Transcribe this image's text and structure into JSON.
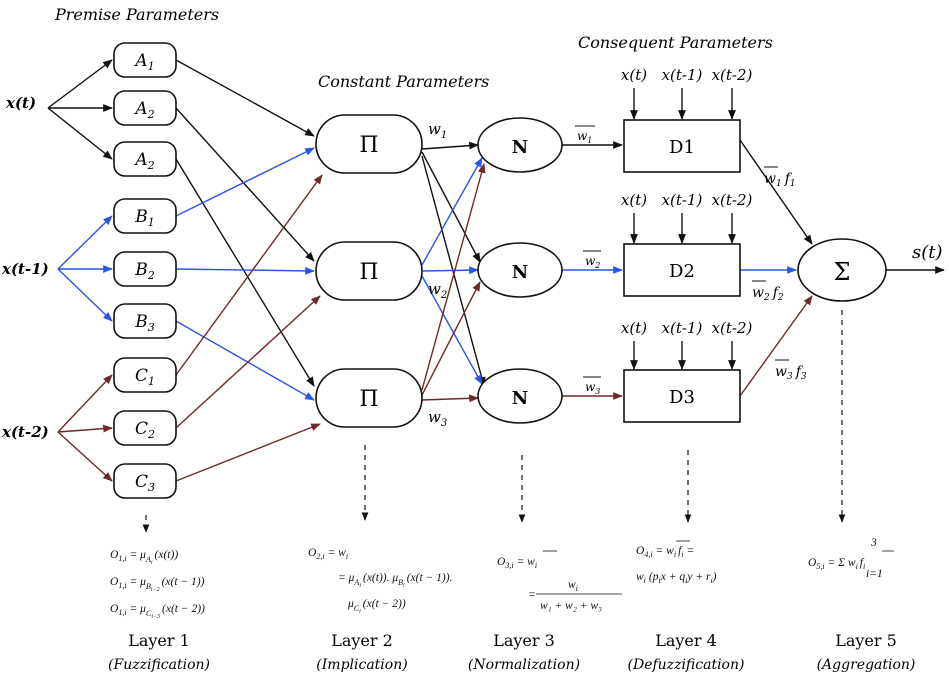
{
  "headers": {
    "premise": "Premise Parameters",
    "constant": "Constant Parameters",
    "consequent": "Consequent Parameters"
  },
  "inputs": [
    "x(t)",
    "x(t-1)",
    "x(t-2)"
  ],
  "layer1_nodes": [
    {
      "base": "A",
      "sub": "1"
    },
    {
      "base": "A",
      "sub": "2"
    },
    {
      "base": "A",
      "sub": "2"
    },
    {
      "base": "B",
      "sub": "1"
    },
    {
      "base": "B",
      "sub": "2"
    },
    {
      "base": "B",
      "sub": "3"
    },
    {
      "base": "C",
      "sub": "1"
    },
    {
      "base": "C",
      "sub": "2"
    },
    {
      "base": "C",
      "sub": "3"
    }
  ],
  "pi_symbol": "Π",
  "n_symbol": "N",
  "sigma_symbol": "Σ",
  "weights": [
    {
      "base": "w",
      "sub": "1"
    },
    {
      "base": "w",
      "sub": "2"
    },
    {
      "base": "w",
      "sub": "3"
    }
  ],
  "norm_weights": [
    {
      "base": "w",
      "sub": "1"
    },
    {
      "base": "w",
      "sub": "2"
    },
    {
      "base": "w",
      "sub": "3"
    }
  ],
  "defuzz_nodes": [
    "D1",
    "D2",
    "D3"
  ],
  "consequent_inputs": [
    "x(t)",
    "x(t-1)",
    "x(t-2)"
  ],
  "outputs": [
    {
      "w": "w",
      "wsub": "1",
      "f": "f",
      "fsub": "1"
    },
    {
      "w": "w",
      "wsub": "2",
      "f": "f",
      "fsub": "2"
    },
    {
      "w": "w",
      "wsub": "3",
      "f": "f",
      "fsub": "3"
    }
  ],
  "final_output": "s(t)",
  "equations": {
    "l1": [
      {
        "o": "O",
        "osub": "1,i",
        "rhs": "= μ",
        "msub": "A",
        "msub2": "i",
        "arg": "(x(t))"
      },
      {
        "o": "O",
        "osub": "1,i",
        "rhs": "= μ",
        "msub": "B",
        "msub2": "i−2",
        "arg": "(x(t − 1))"
      },
      {
        "o": "O",
        "osub": "1,i",
        "rhs": "= μ",
        "msub": "C",
        "msub2": "i−3",
        "arg": "(x(t − 2))"
      }
    ],
    "l2_line1": "= w",
    "l2_o": "O",
    "l2_osub": "2,i",
    "l2_wsub": "i",
    "l2_line2a": "= μ",
    "l2_line2b": "(x(t)). μ",
    "l2_line2c": "(x(t − 1)).",
    "l2_line3": "(x(t − 2))",
    "l3_o": "O",
    "l3_osub": "3,i",
    "l3_eq": "= w",
    "l3_num": "w",
    "l3_den": "w₁ + w₂ + w₃",
    "l4_o": "O",
    "l4_osub": "4,i",
    "l4_eq1": "= w",
    "l4_eq1b": "f",
    "l4_eq2": "w",
    "l4_eq2b": "(p",
    "l4_eq2c": "x + q",
    "l4_eq2d": "y + r",
    "l4_eq2e": ")",
    "l5_o": "O",
    "l5_osub": "5,i",
    "l5_eq": "= Σ w",
    "l5_f": "f",
    "l5_top": "3",
    "l5_bot": "i=1"
  },
  "layers": [
    {
      "name": "Layer 1",
      "desc": "(Fuzzification)"
    },
    {
      "name": "Layer 2",
      "desc": "(Implication)"
    },
    {
      "name": "Layer 3",
      "desc": "(Normalization)"
    },
    {
      "name": "Layer 4",
      "desc": "(Defuzzification)"
    },
    {
      "name": "Layer 5",
      "desc": "(Aggregation)"
    }
  ],
  "colors": {
    "black": "#111111",
    "blue": "#2a56e6",
    "maroon": "#6e2a28"
  }
}
